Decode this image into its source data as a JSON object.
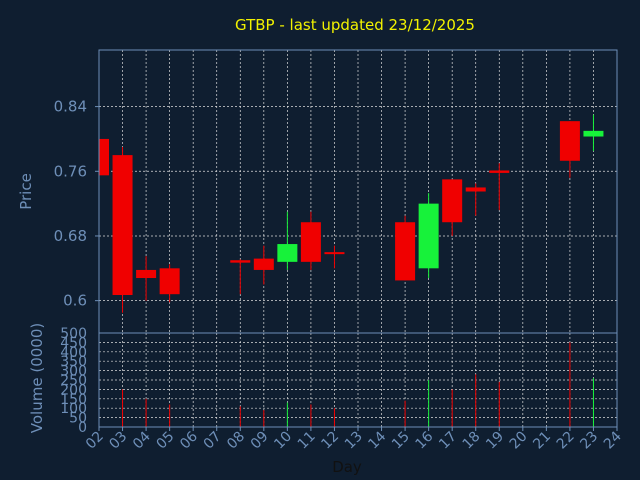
{
  "chart_data": {
    "type": "candlestick",
    "title": "GTBP - last updated 23/12/2025",
    "xlabel": "Day",
    "ylabel": "Price",
    "volume_label": "Volume (0000)",
    "price_ylim": [
      0.56,
      0.91
    ],
    "price_ticks": [
      "0.6",
      "0.68",
      "0.76",
      "0.84"
    ],
    "price_tick_values": [
      0.6,
      0.68,
      0.76,
      0.84
    ],
    "volume_ylim": [
      0,
      500
    ],
    "volume_ticks": [
      "0",
      "50",
      "100",
      "150",
      "200",
      "250",
      "300",
      "350",
      "400",
      "450",
      "500"
    ],
    "x_tick_labels": [
      "02",
      "03",
      "04",
      "05",
      "06",
      "07",
      "08",
      "09",
      "10",
      "11",
      "12",
      "13",
      "14",
      "15",
      "16",
      "17",
      "18",
      "19",
      "20",
      "21",
      "22",
      "23",
      "24"
    ],
    "candles": [
      {
        "day": "02",
        "open": 0.8,
        "close": 0.755,
        "high": 0.8,
        "low": 0.755,
        "volume": 0
      },
      {
        "day": "03",
        "open": 0.78,
        "close": 0.607,
        "high": 0.79,
        "low": 0.585,
        "volume": 200
      },
      {
        "day": "04",
        "open": 0.638,
        "close": 0.628,
        "high": 0.655,
        "low": 0.6,
        "volume": 150
      },
      {
        "day": "05",
        "open": 0.64,
        "close": 0.608,
        "high": 0.645,
        "low": 0.598,
        "volume": 120
      },
      {
        "day": "08",
        "open": 0.65,
        "close": 0.647,
        "high": 0.651,
        "low": 0.608,
        "volume": 110
      },
      {
        "day": "09",
        "open": 0.652,
        "close": 0.638,
        "high": 0.668,
        "low": 0.62,
        "volume": 90
      },
      {
        "day": "10",
        "open": 0.648,
        "close": 0.67,
        "high": 0.71,
        "low": 0.638,
        "volume": 130
      },
      {
        "day": "11",
        "open": 0.697,
        "close": 0.648,
        "high": 0.71,
        "low": 0.638,
        "volume": 120
      },
      {
        "day": "12",
        "open": 0.66,
        "close": 0.658,
        "high": 0.668,
        "low": 0.64,
        "volume": 100
      },
      {
        "day": "15",
        "open": 0.697,
        "close": 0.625,
        "high": 0.705,
        "low": 0.625,
        "volume": 140
      },
      {
        "day": "16",
        "open": 0.64,
        "close": 0.72,
        "high": 0.733,
        "low": 0.628,
        "volume": 250
      },
      {
        "day": "17",
        "open": 0.75,
        "close": 0.697,
        "high": 0.75,
        "low": 0.68,
        "volume": 200
      },
      {
        "day": "18",
        "open": 0.74,
        "close": 0.735,
        "high": 0.745,
        "low": 0.705,
        "volume": 280
      },
      {
        "day": "19",
        "open": 0.761,
        "close": 0.758,
        "high": 0.77,
        "low": 0.712,
        "volume": 240
      },
      {
        "day": "22",
        "open": 0.822,
        "close": 0.773,
        "high": 0.822,
        "low": 0.752,
        "volume": 450
      },
      {
        "day": "23",
        "open": 0.803,
        "close": 0.81,
        "high": 0.83,
        "low": 0.785,
        "volume": 260
      }
    ],
    "grid": true,
    "colors": {
      "background": "#0f1e30",
      "up": "#17f23a",
      "down": "#f00000",
      "axis": "#6e8fb8",
      "grid": "#dcdcdc",
      "title": "#f2f200",
      "text": "#6e8fb8",
      "xlabel": "#111111"
    }
  }
}
